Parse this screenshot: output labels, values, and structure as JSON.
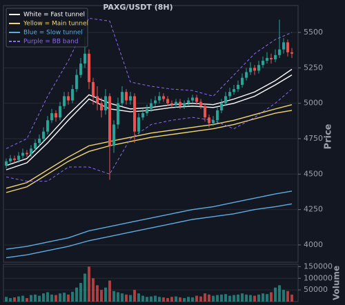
{
  "chart_data": {
    "type": "candlestick",
    "title": "PAXG/USDT (8H)",
    "ylabel": "Price",
    "volume_label": "Volume",
    "up_color": "#26a69a",
    "down_color": "#ef5350",
    "grid": true,
    "legend": "upper left",
    "ylim": [
      3878,
      5690
    ],
    "yticks": [
      4000,
      4250,
      4500,
      4750,
      5000,
      5250,
      5500
    ],
    "volume_ylim": [
      0,
      160000
    ],
    "volume_yticks": [
      50000,
      100000,
      150000
    ],
    "open": [
      4560,
      4590,
      4610,
      4600,
      4630,
      4650,
      4640,
      4680,
      4720,
      4750,
      4800,
      4880,
      4930,
      4900,
      4980,
      5050,
      5020,
      5100,
      5200,
      5280,
      5350,
      5150,
      5050,
      5000,
      4950,
      5050,
      4700,
      4850,
      5000,
      5080,
      5020,
      5050,
      4800,
      4900,
      4930,
      4960,
      5000,
      5020,
      5050,
      5030,
      5000,
      4990,
      5010,
      4980,
      5000,
      5020,
      5040,
      5010,
      4980,
      4900,
      4860,
      4880,
      4950,
      5000,
      5050,
      5080,
      5100,
      5130,
      5180,
      5220,
      5250,
      5230,
      5270,
      5300,
      5320,
      5310,
      5340,
      5380,
      5430,
      5360
    ],
    "high": [
      4610,
      4635,
      4630,
      4655,
      4680,
      4670,
      4705,
      4745,
      4780,
      4830,
      4910,
      4960,
      4950,
      5010,
      5080,
      5080,
      5130,
      5240,
      5320,
      5470,
      5380,
      5180,
      5120,
      5040,
      5100,
      5070,
      4880,
      5040,
      5120,
      5100,
      5080,
      5070,
      4930,
      4960,
      4990,
      5030,
      5050,
      5080,
      5070,
      5050,
      5020,
      5030,
      5030,
      5020,
      5040,
      5060,
      5060,
      5030,
      5000,
      4920,
      4910,
      4970,
      5030,
      5080,
      5110,
      5130,
      5160,
      5210,
      5250,
      5290,
      5270,
      5300,
      5330,
      5360,
      5350,
      5380,
      5590,
      5460,
      5450,
      5390
    ],
    "low": [
      4540,
      4570,
      4580,
      4580,
      4610,
      4620,
      4620,
      4660,
      4700,
      4730,
      4780,
      4860,
      4870,
      4880,
      4960,
      4990,
      5000,
      5080,
      5180,
      5250,
      5100,
      4990,
      4950,
      4900,
      4920,
      4460,
      4650,
      4820,
      4980,
      4990,
      4990,
      4720,
      4780,
      4880,
      4910,
      4940,
      4980,
      5000,
      5010,
      4980,
      4970,
      4970,
      4960,
      4960,
      4980,
      5000,
      4990,
      4960,
      4870,
      4830,
      4840,
      4860,
      4930,
      4980,
      5030,
      5060,
      5080,
      5110,
      5160,
      5200,
      5200,
      5210,
      5250,
      5280,
      5280,
      5290,
      5320,
      5350,
      5330,
      5320
    ],
    "close": [
      4590,
      4610,
      4600,
      4630,
      4650,
      4640,
      4680,
      4720,
      4750,
      4800,
      4880,
      4930,
      4900,
      4980,
      5050,
      5020,
      5100,
      5200,
      5280,
      5350,
      5150,
      5050,
      5000,
      4950,
      5050,
      4700,
      4850,
      5000,
      5080,
      5020,
      5050,
      4800,
      4900,
      4930,
      4960,
      5000,
      5020,
      5050,
      5030,
      5000,
      4990,
      5010,
      4980,
      5000,
      5020,
      5040,
      5010,
      4980,
      4900,
      4860,
      4880,
      4950,
      5000,
      5050,
      5080,
      5100,
      5130,
      5180,
      5220,
      5250,
      5230,
      5270,
      5300,
      5320,
      5310,
      5340,
      5380,
      5430,
      5360,
      5350
    ],
    "volume": [
      20000,
      15000,
      18000,
      22000,
      25000,
      15000,
      28000,
      30000,
      25000,
      35000,
      40000,
      30000,
      28000,
      35000,
      38000,
      30000,
      42000,
      60000,
      80000,
      120000,
      150000,
      100000,
      70000,
      50000,
      60000,
      90000,
      45000,
      40000,
      35000,
      30000,
      28000,
      50000,
      35000,
      25000,
      20000,
      22000,
      25000,
      20000,
      18000,
      15000,
      20000,
      22000,
      18000,
      15000,
      20000,
      18000,
      25000,
      22000,
      35000,
      30000,
      25000,
      28000,
      30000,
      32000,
      25000,
      28000,
      30000,
      35000,
      30000,
      28000,
      25000,
      30000,
      35000,
      32000,
      40000,
      60000,
      70000,
      50000,
      45000,
      30000
    ],
    "overlay_index": [
      0,
      5,
      10,
      15,
      20,
      25,
      30,
      35,
      40,
      45,
      50,
      55,
      60,
      65,
      69
    ],
    "tunnels": [
      {
        "name": "White = Fast tunnel",
        "color": "#ffffff",
        "dashed": false,
        "upper": [
          4560,
          4610,
          4760,
          4920,
          5060,
          5000,
          4960,
          4970,
          4990,
          5000,
          4990,
          5030,
          5080,
          5160,
          5240
        ],
        "lower": [
          4530,
          4580,
          4720,
          4880,
          5030,
          4960,
          4940,
          4950,
          4970,
          4980,
          4970,
          5000,
          5050,
          5130,
          5200
        ]
      },
      {
        "name": "Yellow = Main tunnel",
        "color": "#f5d76e",
        "dashed": false,
        "upper": [
          4400,
          4440,
          4530,
          4620,
          4700,
          4730,
          4760,
          4790,
          4810,
          4830,
          4850,
          4880,
          4920,
          4960,
          4990
        ],
        "lower": [
          4370,
          4410,
          4500,
          4590,
          4660,
          4700,
          4730,
          4760,
          4780,
          4800,
          4820,
          4850,
          4890,
          4930,
          4950
        ]
      },
      {
        "name": "Blue = Slow tunnel",
        "color": "#5dade2",
        "dashed": false,
        "upper": [
          3970,
          3990,
          4020,
          4050,
          4100,
          4130,
          4160,
          4190,
          4220,
          4250,
          4270,
          4300,
          4330,
          4360,
          4380
        ],
        "lower": [
          3910,
          3930,
          3960,
          3990,
          4030,
          4060,
          4090,
          4120,
          4150,
          4180,
          4200,
          4220,
          4250,
          4270,
          4290
        ]
      },
      {
        "name": "Purple = BB band",
        "color": "#8e6cf0",
        "dashed": true,
        "upper": [
          4680,
          4750,
          5050,
          5300,
          5600,
          5580,
          5150,
          5120,
          5100,
          5090,
          5050,
          5200,
          5350,
          5450,
          5500
        ],
        "lower": [
          4480,
          4450,
          4450,
          4550,
          4550,
          4500,
          4750,
          4850,
          4880,
          4900,
          4880,
          4820,
          4900,
          5000,
          5100
        ]
      }
    ]
  }
}
